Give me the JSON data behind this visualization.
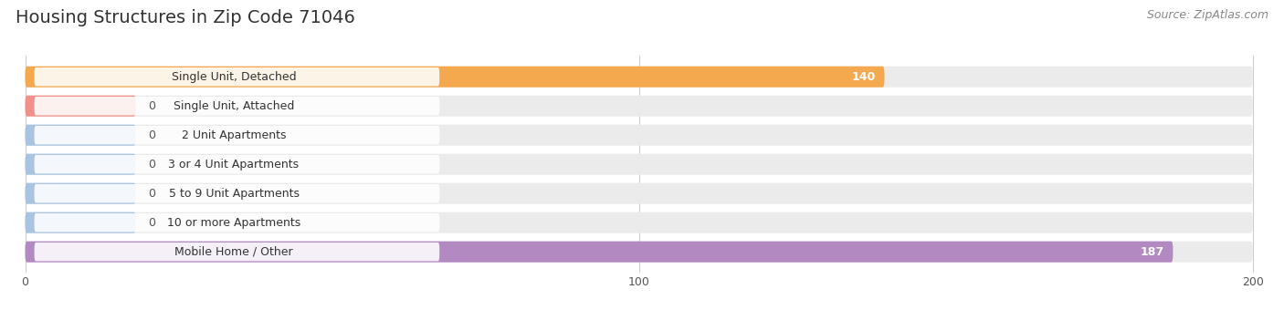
{
  "title": "Housing Structures in Zip Code 71046",
  "source": "Source: ZipAtlas.com",
  "categories": [
    "Single Unit, Detached",
    "Single Unit, Attached",
    "2 Unit Apartments",
    "3 or 4 Unit Apartments",
    "5 to 9 Unit Apartments",
    "10 or more Apartments",
    "Mobile Home / Other"
  ],
  "values": [
    140,
    0,
    0,
    0,
    0,
    0,
    187
  ],
  "bar_colors": [
    "#f5a94e",
    "#f0908a",
    "#a8c4e0",
    "#a8c4e0",
    "#a8c4e0",
    "#a8c4e0",
    "#b389c2"
  ],
  "zero_bar_width": 18,
  "xlim_max": 200,
  "xticks": [
    0,
    100,
    200
  ],
  "bg_color": "#ffffff",
  "row_bg_color": "#ebebeb",
  "title_fontsize": 14,
  "source_fontsize": 9,
  "label_fontsize": 9,
  "value_fontsize": 9
}
